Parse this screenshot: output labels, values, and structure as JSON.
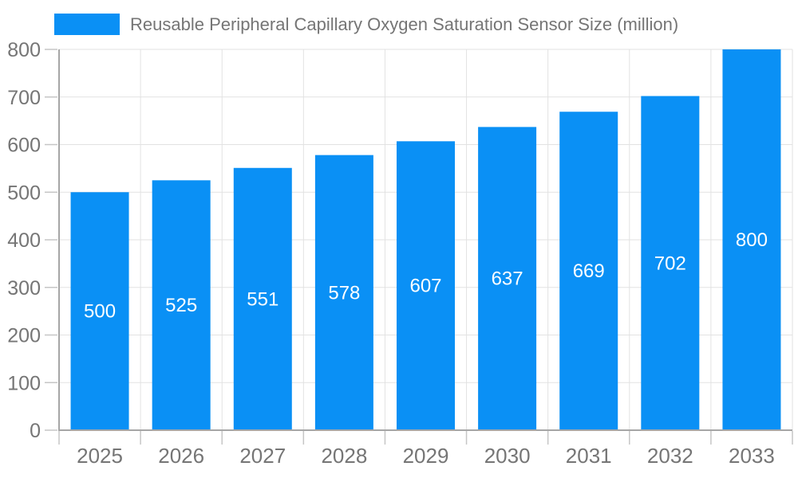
{
  "chart_data": {
    "type": "bar",
    "title": "Reusable Peripheral Capillary Oxygen Saturation Sensor Size (million)",
    "legend": {
      "position": "top",
      "entries": [
        "Reusable Peripheral Capillary Oxygen Saturation Sensor Size (million)"
      ]
    },
    "categories": [
      "2025",
      "2026",
      "2027",
      "2028",
      "2029",
      "2030",
      "2031",
      "2032",
      "2033"
    ],
    "series": [
      {
        "name": "Reusable Peripheral Capillary Oxygen Saturation Sensor Size (million)",
        "values": [
          500,
          525,
          551,
          578,
          607,
          637,
          669,
          702,
          800
        ]
      }
    ],
    "data_labels": [
      "500",
      "525",
      "551",
      "578",
      "607",
      "637",
      "669",
      "702",
      "800"
    ],
    "xlabel": "",
    "ylabel": "",
    "ylim": [
      0,
      800
    ],
    "yticks": [
      0,
      100,
      200,
      300,
      400,
      500,
      600,
      700,
      800
    ],
    "grid": true,
    "colors": {
      "bar": "#0a90f5",
      "bar_label_text": "#ffffff",
      "axis_text": "#757575",
      "legend_text": "#757575",
      "gridline": "#e2e2e2",
      "axis_line": "#a6a6a6",
      "tick": "#c6c6c6",
      "background": "#ffffff"
    }
  }
}
